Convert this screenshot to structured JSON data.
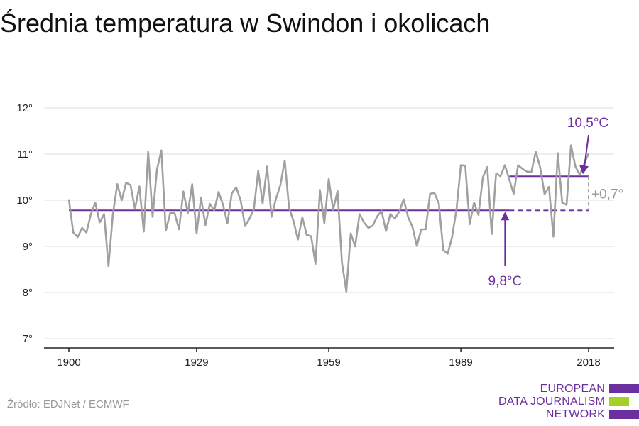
{
  "title": "Średnia temperatura w Swindon i okolicach",
  "source": "Źródło: EDJNet / ECMWF",
  "logo": {
    "lines": [
      "EUROPEAN",
      "DATA JOURNALISM",
      "NETWORK"
    ],
    "colors": {
      "purple": "#6b2fa0",
      "green": "#a3d12a"
    }
  },
  "colors": {
    "series": "#a0a0a0",
    "reference": "#6b2fa0",
    "grid": "#dddddd",
    "axis": "#222222",
    "difference": "#999999"
  },
  "chart_data": {
    "type": "line",
    "title": "",
    "xlabel": "",
    "ylabel": "",
    "xlim": [
      1900,
      2018
    ],
    "ylim": [
      7,
      12
    ],
    "x_ticks": [
      1900,
      1929,
      1959,
      1989,
      2018
    ],
    "x_tick_labels": [
      "1900",
      "1929",
      "1959",
      "1989",
      "2018"
    ],
    "y_ticks": [
      7,
      8,
      9,
      10,
      11,
      12
    ],
    "y_tick_labels": [
      "7°",
      "8°",
      "9°",
      "10°",
      "11°",
      "12°"
    ],
    "grid": true,
    "series": [
      {
        "years": [
          1900,
          1901,
          1902,
          1903,
          1904,
          1905,
          1906,
          1907,
          1908,
          1909,
          1910,
          1911,
          1912,
          1913,
          1914,
          1915,
          1916,
          1917,
          1918,
          1919,
          1920,
          1921,
          1922,
          1923,
          1924,
          1925,
          1926,
          1927,
          1928,
          1929,
          1930,
          1931,
          1932,
          1933,
          1934,
          1935,
          1936,
          1937,
          1938,
          1939,
          1940,
          1941,
          1942,
          1943,
          1944,
          1945,
          1946,
          1947,
          1948,
          1949,
          1950,
          1951,
          1952,
          1953,
          1954,
          1955,
          1956,
          1957,
          1958,
          1959,
          1960,
          1961,
          1962,
          1963,
          1964,
          1965,
          1966,
          1967,
          1968,
          1969,
          1970,
          1971,
          1972,
          1973,
          1974,
          1975,
          1976,
          1977,
          1978,
          1979,
          1980,
          1981,
          1982,
          1983,
          1984,
          1985,
          1986,
          1987,
          1988,
          1989,
          1990,
          1991,
          1992,
          1993,
          1994,
          1995,
          1996,
          1997,
          1998,
          1999,
          2000,
          2001,
          2002,
          2003,
          2004,
          2005,
          2006,
          2007,
          2008,
          2009,
          2010,
          2011,
          2012,
          2013,
          2014,
          2015,
          2016,
          2017,
          2018
        ],
        "values": [
          10.02,
          9.3,
          9.2,
          9.4,
          9.3,
          9.7,
          9.95,
          9.52,
          9.7,
          8.57,
          9.7,
          10.35,
          10.0,
          10.38,
          10.33,
          9.81,
          10.3,
          9.32,
          11.05,
          9.64,
          10.67,
          11.08,
          9.34,
          9.72,
          9.72,
          9.37,
          10.19,
          9.72,
          10.35,
          9.28,
          10.06,
          9.46,
          9.92,
          9.78,
          10.18,
          9.9,
          9.5,
          10.15,
          10.28,
          10.0,
          9.44,
          9.6,
          9.8,
          10.64,
          9.93,
          10.73,
          9.64,
          10.03,
          10.32,
          10.86,
          9.83,
          9.55,
          9.15,
          9.63,
          9.25,
          9.22,
          8.62,
          10.22,
          9.5,
          10.46,
          9.79,
          10.2,
          8.65,
          8.02,
          9.28,
          9.0,
          9.7,
          9.52,
          9.4,
          9.45,
          9.65,
          9.77,
          9.33,
          9.7,
          9.6,
          9.75,
          10.02,
          9.64,
          9.42,
          9.01,
          9.37,
          9.37,
          10.14,
          10.16,
          9.93,
          8.92,
          8.84,
          9.2,
          9.8,
          10.76,
          10.75,
          9.48,
          9.95,
          9.68,
          10.5,
          10.72,
          9.27,
          10.58,
          10.52,
          10.76,
          10.45,
          10.14,
          10.76,
          10.68,
          10.62,
          10.61,
          11.05,
          10.71,
          10.13,
          10.29,
          9.21,
          11.02,
          9.95,
          9.9,
          11.19,
          10.73,
          10.55,
          10.79,
          11.02
        ]
      }
    ],
    "reference_lines": [
      {
        "label": "9,8°C",
        "value": 9.78,
        "from": 1900,
        "to": 2018
      },
      {
        "label": "10,5°C",
        "value": 10.52,
        "from": 2000,
        "to": 2018
      }
    ],
    "difference_label": "+0,7°"
  }
}
